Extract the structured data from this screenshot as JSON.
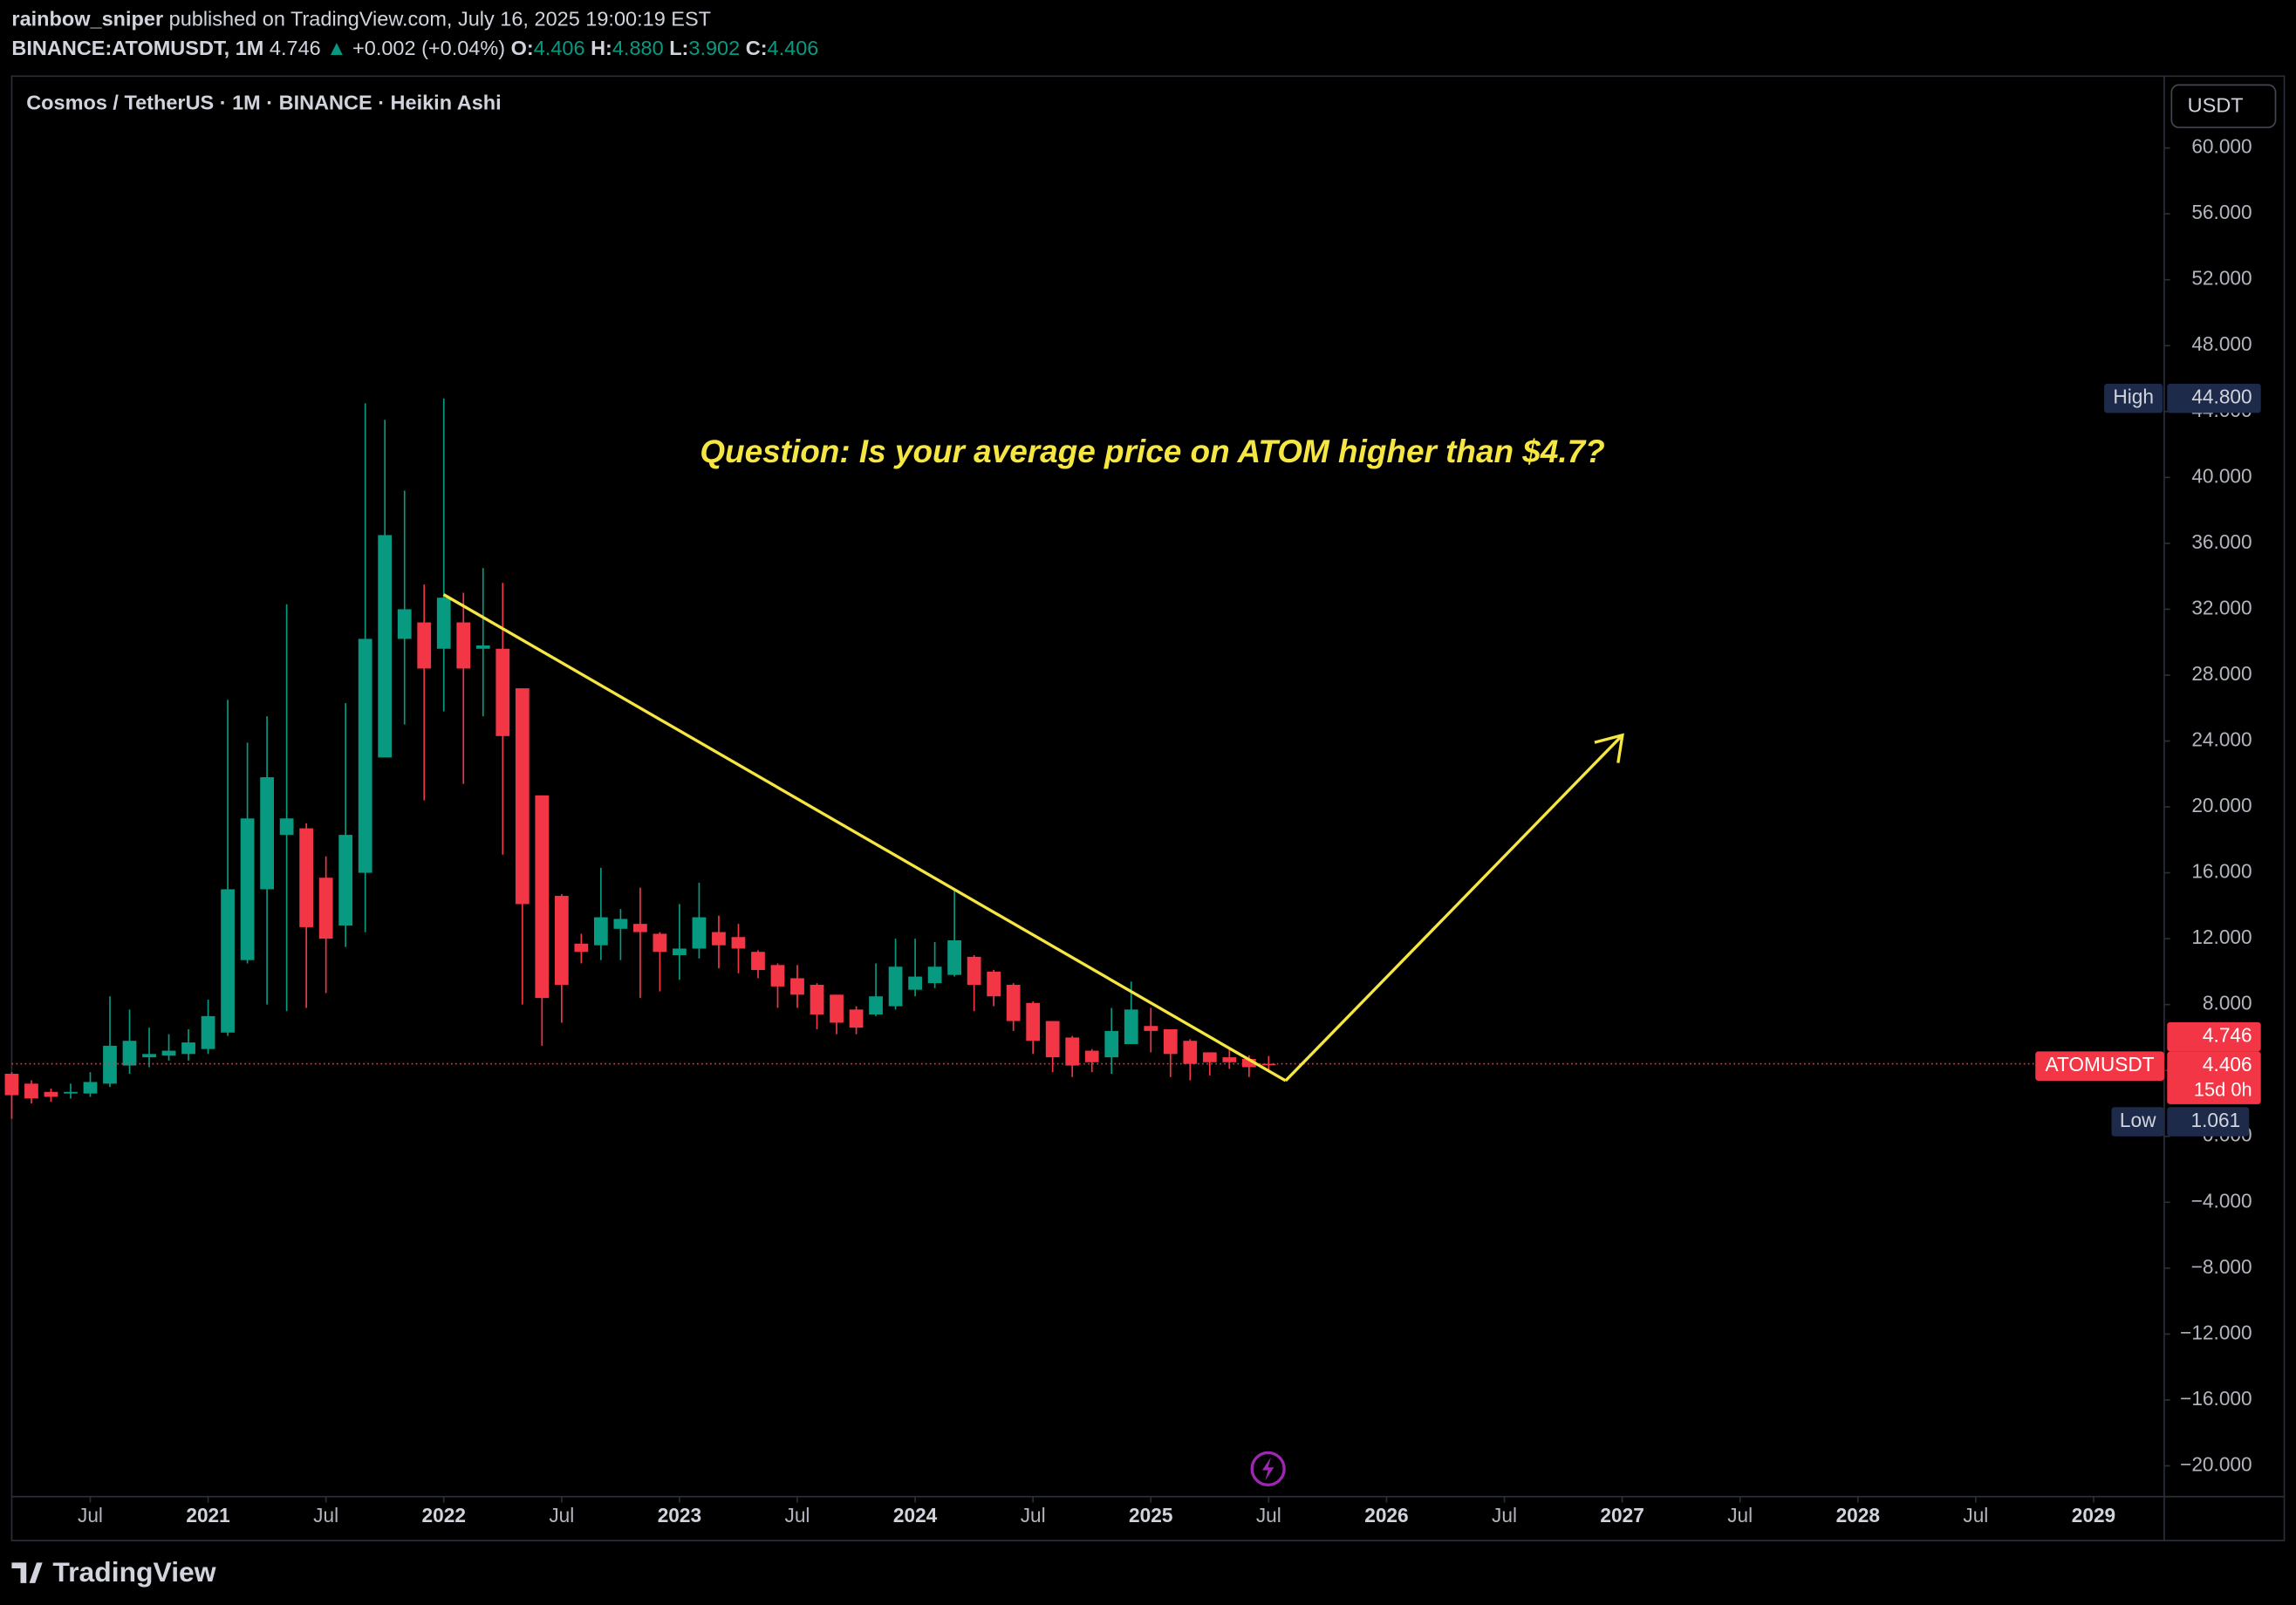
{
  "chart_data": {
    "type": "candlestick",
    "title": "Cosmos / TetherUS · 1M · BINANCE · Heikin Ashi",
    "header": {
      "line1": [
        {
          "text": "rainbow_sniper",
          "bold": true
        },
        {
          "text": " published on TradingView.com, July 16, 2025 19:00:19 EST"
        }
      ],
      "line2": [
        {
          "text": "BINANCE:ATOMUSDT, 1M ",
          "bold": true
        },
        {
          "text": "4.746 ",
          "color": "#d1d4dc"
        },
        {
          "text": "▲ ",
          "color": "#089981"
        },
        {
          "text": "+0.002 (+0.04%) ",
          "color": "#d1d4dc"
        },
        {
          "text": "O:",
          "bold": true
        },
        {
          "text": "4.406 ",
          "color": "#089981"
        },
        {
          "text": "H:",
          "bold": true
        },
        {
          "text": "4.880 ",
          "color": "#089981"
        },
        {
          "text": "L:",
          "bold": true
        },
        {
          "text": "3.902 ",
          "color": "#089981"
        },
        {
          "text": "C:",
          "bold": true
        },
        {
          "text": "4.406",
          "color": "#089981"
        }
      ]
    },
    "currency_button": "USDT",
    "annotation": "Question: Is your average price on ATOM higher than $4.7?",
    "logo": "TradingView",
    "price_tags": {
      "high_label": "High",
      "high_value": "44.800",
      "last_value": "4.746",
      "symbol": "ATOMUSDT",
      "close_value": "4.406",
      "countdown": "15d 0h",
      "low_label": "Low",
      "low_value": "1.061"
    },
    "up_color": "#089981",
    "down_color": "#f23645",
    "x": [
      "2020-03",
      "2020-04",
      "2020-05",
      "2020-06",
      "2020-07",
      "2020-08",
      "2020-09",
      "2020-10",
      "2020-11",
      "2020-12",
      "2021-01",
      "2021-02",
      "2021-03",
      "2021-04",
      "2021-05",
      "2021-06",
      "2021-07",
      "2021-08",
      "2021-09",
      "2021-10",
      "2021-11",
      "2021-12",
      "2022-01",
      "2022-02",
      "2022-03",
      "2022-04",
      "2022-05",
      "2022-06",
      "2022-07",
      "2022-08",
      "2022-09",
      "2022-10",
      "2022-11",
      "2022-12",
      "2023-01",
      "2023-02",
      "2023-03",
      "2023-04",
      "2023-05",
      "2023-06",
      "2023-07",
      "2023-08",
      "2023-09",
      "2023-10",
      "2023-11",
      "2023-12",
      "2024-01",
      "2024-02",
      "2024-03",
      "2024-04",
      "2024-05",
      "2024-06",
      "2024-07",
      "2024-08",
      "2024-09",
      "2024-10",
      "2024-11",
      "2024-12",
      "2025-01",
      "2025-02",
      "2025-03",
      "2025-04",
      "2025-05",
      "2025-06",
      "2025-07"
    ],
    "open": [
      3.8,
      3.2,
      2.7,
      2.6,
      2.6,
      3.2,
      4.3,
      4.8,
      4.9,
      5.0,
      5.3,
      6.3,
      10.7,
      15.0,
      18.3,
      18.7,
      15.7,
      12.8,
      16.0,
      23.0,
      30.2,
      31.2,
      29.6,
      31.2,
      29.6,
      29.6,
      27.2,
      20.7,
      14.6,
      11.7,
      11.6,
      12.6,
      12.9,
      12.3,
      11.0,
      11.4,
      12.4,
      12.1,
      11.2,
      10.4,
      9.6,
      9.2,
      8.6,
      7.7,
      7.4,
      7.9,
      8.9,
      9.3,
      9.8,
      10.9,
      10.0,
      9.2,
      8.1,
      7.0,
      6.0,
      5.2,
      4.8,
      5.6,
      6.7,
      6.5,
      5.8,
      5.1,
      4.8,
      4.7,
      4.406
    ],
    "high": [
      3.9,
      3.4,
      2.9,
      3.2,
      3.9,
      8.5,
      7.7,
      6.6,
      6.2,
      6.5,
      8.3,
      26.5,
      23.9,
      25.5,
      32.3,
      19.0,
      17.0,
      26.3,
      44.5,
      43.5,
      39.2,
      33.5,
      44.8,
      33.0,
      34.5,
      33.6,
      27.2,
      20.7,
      14.7,
      12.3,
      16.3,
      13.8,
      15.1,
      12.4,
      14.1,
      15.4,
      13.4,
      12.9,
      11.3,
      10.5,
      10.4,
      9.3,
      8.6,
      7.9,
      10.5,
      12.0,
      12.0,
      11.8,
      14.9,
      11.0,
      10.1,
      9.3,
      8.2,
      7.0,
      6.1,
      5.3,
      7.8,
      9.4,
      7.8,
      6.5,
      5.9,
      5.1,
      5.3,
      4.9,
      4.88
    ],
    "low": [
      1.061,
      2.0,
      2.1,
      2.3,
      2.4,
      3.0,
      3.8,
      4.2,
      4.6,
      4.6,
      5.0,
      6.1,
      10.5,
      8.0,
      7.6,
      7.8,
      8.7,
      11.5,
      12.4,
      23.0,
      25.0,
      20.4,
      25.8,
      21.4,
      25.5,
      17.1,
      8.0,
      5.5,
      6.9,
      10.5,
      10.7,
      10.7,
      8.4,
      8.8,
      9.5,
      10.8,
      10.2,
      9.9,
      9.6,
      7.8,
      7.8,
      6.5,
      6.2,
      6.2,
      7.3,
      7.7,
      8.5,
      9.0,
      9.7,
      7.6,
      7.9,
      6.4,
      5.0,
      3.9,
      3.6,
      3.9,
      3.8,
      5.6,
      5.1,
      3.6,
      3.4,
      3.7,
      4.1,
      3.6,
      3.902
    ],
    "close": [
      2.5,
      2.3,
      2.4,
      2.7,
      3.3,
      5.5,
      5.8,
      5.0,
      5.2,
      5.7,
      7.3,
      15.0,
      19.3,
      21.8,
      19.3,
      12.7,
      12.0,
      18.3,
      30.2,
      36.5,
      32.0,
      28.4,
      32.7,
      28.4,
      29.8,
      24.3,
      14.1,
      8.4,
      9.2,
      11.2,
      13.3,
      13.2,
      12.4,
      11.2,
      11.4,
      13.3,
      11.6,
      11.4,
      10.1,
      9.1,
      8.6,
      7.4,
      6.9,
      6.6,
      8.5,
      10.3,
      9.7,
      10.3,
      11.9,
      9.2,
      8.5,
      7.0,
      5.8,
      4.8,
      4.3,
      4.5,
      6.4,
      7.7,
      6.4,
      5.0,
      4.4,
      4.5,
      4.5,
      4.2,
      4.406
    ],
    "xlim": [
      "2020-03",
      "2029-04"
    ],
    "xticks": [
      {
        "value": "2020-07",
        "label": "Jul"
      },
      {
        "value": "2021-01",
        "label": "2021"
      },
      {
        "value": "2021-07",
        "label": "Jul"
      },
      {
        "value": "2022-01",
        "label": "2022"
      },
      {
        "value": "2022-07",
        "label": "Jul"
      },
      {
        "value": "2023-01",
        "label": "2023"
      },
      {
        "value": "2023-07",
        "label": "Jul"
      },
      {
        "value": "2024-01",
        "label": "2024"
      },
      {
        "value": "2024-07",
        "label": "Jul"
      },
      {
        "value": "2025-01",
        "label": "2025"
      },
      {
        "value": "2025-07",
        "label": "Jul"
      },
      {
        "value": "2026-01",
        "label": "2026"
      },
      {
        "value": "2026-07",
        "label": "Jul"
      },
      {
        "value": "2027-01",
        "label": "2027"
      },
      {
        "value": "2027-07",
        "label": "Jul"
      },
      {
        "value": "2028-01",
        "label": "2028"
      },
      {
        "value": "2028-07",
        "label": "Jul"
      },
      {
        "value": "2029-01",
        "label": "2029"
      }
    ],
    "ylim": [
      -21.87,
      64.36
    ],
    "yticks": [
      {
        "value": 60,
        "label": "60.000"
      },
      {
        "value": 56,
        "label": "56.000"
      },
      {
        "value": 52,
        "label": "52.000"
      },
      {
        "value": 48,
        "label": "48.000"
      },
      {
        "value": 44,
        "label": "44.000"
      },
      {
        "value": 40,
        "label": "40.000"
      },
      {
        "value": 36,
        "label": "36.000"
      },
      {
        "value": 32,
        "label": "32.000"
      },
      {
        "value": 28,
        "label": "28.000"
      },
      {
        "value": 24,
        "label": "24.000"
      },
      {
        "value": 20,
        "label": "20.000"
      },
      {
        "value": 16,
        "label": "16.000"
      },
      {
        "value": 12,
        "label": "12.000"
      },
      {
        "value": 8,
        "label": "8.000"
      },
      {
        "value": 4,
        "label": "4.000"
      },
      {
        "value": 0,
        "label": "0.000"
      },
      {
        "value": -4,
        "label": "−4.000"
      },
      {
        "value": -8,
        "label": "−8.000"
      },
      {
        "value": -12,
        "label": "−12.000"
      },
      {
        "value": -16,
        "label": "−16.000"
      },
      {
        "value": -20,
        "label": "−20.000"
      }
    ],
    "grid": false
  }
}
